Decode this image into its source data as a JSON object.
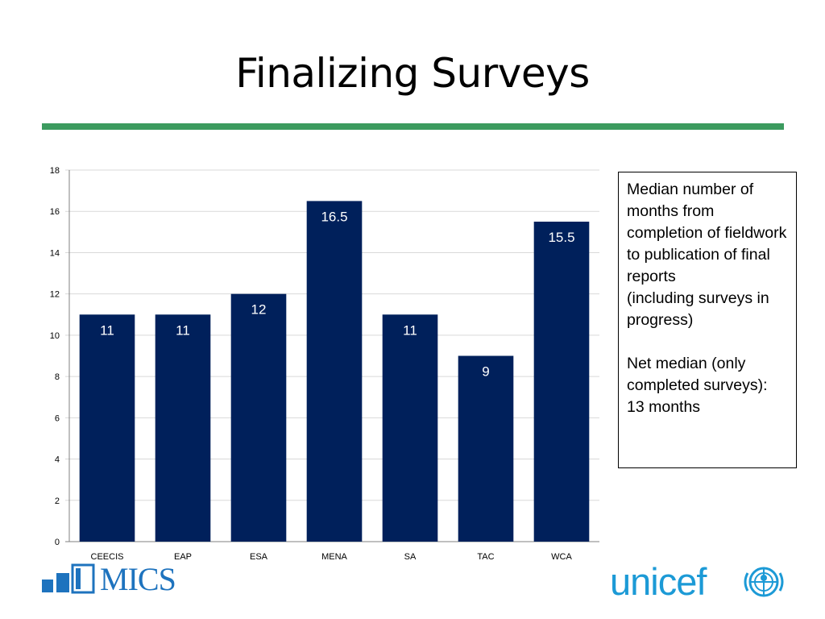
{
  "slide": {
    "title": "Finalizing Surveys",
    "note_lines": [
      "Median number of months from completion of fieldwork to publication of final reports",
      "(including surveys in progress)",
      "Net median (only completed surveys): 13 months"
    ],
    "logos": {
      "mics": "MICS",
      "unicef": "unicef"
    }
  },
  "colors": {
    "bar": "#00205b",
    "accent_rule": "#3c9b5f",
    "grid": "#d9d9d9",
    "logo_blue": "#1e73be",
    "unicef_blue": "#1c9ad6"
  },
  "chart_data": {
    "type": "bar",
    "categories": [
      "CEECIS",
      "EAP",
      "ESA",
      "MENA",
      "SA",
      "TAC",
      "WCA"
    ],
    "values": [
      11,
      11,
      12,
      16.5,
      11,
      9,
      15.5
    ],
    "data_labels": [
      "11",
      "11",
      "12",
      "16.5",
      "11",
      "9",
      "15.5"
    ],
    "y_ticks": [
      0,
      2,
      4,
      6,
      8,
      10,
      12,
      14,
      16,
      18
    ],
    "ylim": [
      0,
      18
    ],
    "grid": true,
    "legend": "none",
    "title": "",
    "xlabel": "",
    "ylabel": ""
  }
}
